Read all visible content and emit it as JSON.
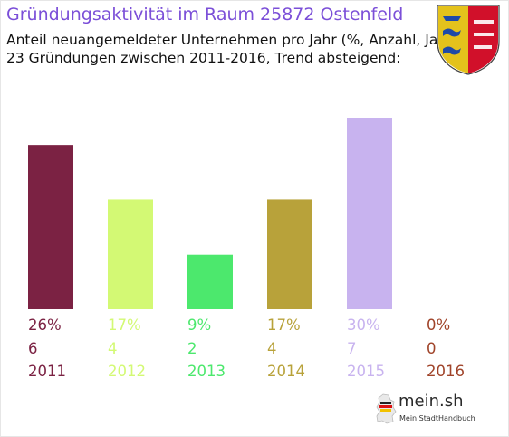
{
  "header": {
    "title": "Gründungsaktivität im Raum 25872 Ostenfeld",
    "subtitle_line1": "Anteil neuangemeldeter Unternehmen pro Jahr (%, Anzahl, Jahr)",
    "subtitle_line2": "23 Gründungen zwischen 2011-2016, Trend absteigend:"
  },
  "logo": {
    "name": "mein.sh",
    "tagline": "Mein StadtHandbuch",
    "icon": "germany-map-icon"
  },
  "crest": {
    "icon": "coat-of-arms-icon",
    "colors": [
      "#1f4aa8",
      "#e4c21c",
      "#d1102a",
      "#ffffff"
    ]
  },
  "chart_data": {
    "type": "bar",
    "categories": [
      "2011",
      "2012",
      "2013",
      "2014",
      "2015",
      "2016"
    ],
    "values": [
      6,
      4,
      2,
      4,
      7,
      0
    ],
    "percent_labels": [
      "26%",
      "17%",
      "9%",
      "17%",
      "30%",
      "0%"
    ],
    "count_labels": [
      "6",
      "4",
      "2",
      "4",
      "7",
      "0"
    ],
    "colors": [
      "#7b2243",
      "#d3f974",
      "#4ce86d",
      "#b8a23a",
      "#c8b3ef",
      "#a0442a"
    ],
    "ylim": [
      0,
      7
    ],
    "grid": false,
    "legend": "none"
  }
}
